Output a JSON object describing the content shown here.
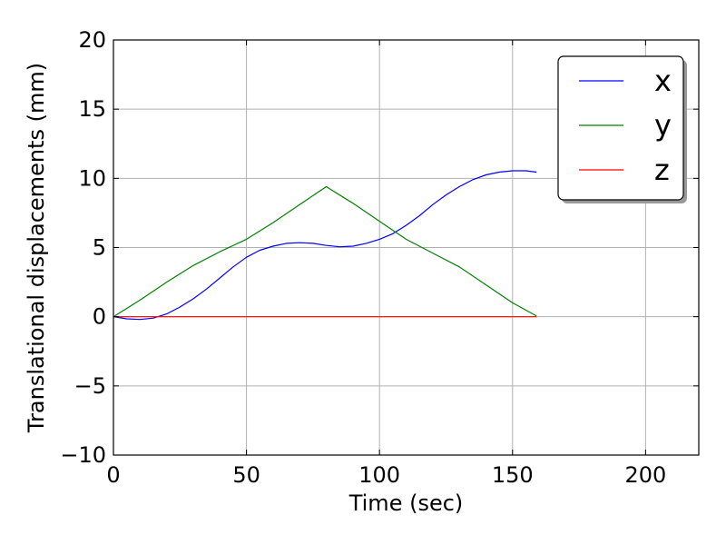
{
  "chart_data": {
    "type": "line",
    "title": "",
    "xlabel": "Time (sec)",
    "ylabel": "Translational displacements (mm)",
    "xlim": [
      0,
      220
    ],
    "ylim": [
      -10,
      20
    ],
    "xticks": [
      0,
      50,
      100,
      150,
      200
    ],
    "yticks": [
      -10,
      -5,
      0,
      5,
      10,
      15,
      20
    ],
    "xtick_labels": [
      "0",
      "50",
      "100",
      "150",
      "200"
    ],
    "ytick_labels": [
      "−10",
      "−5",
      "0",
      "5",
      "10",
      "15",
      "20"
    ],
    "grid": true,
    "legend": {
      "placement": "top-right"
    },
    "series": [
      {
        "name": "x",
        "color": "#0000ff",
        "x": [
          0,
          5,
          10,
          15,
          20,
          25,
          30,
          35,
          40,
          45,
          50,
          55,
          60,
          65,
          70,
          75,
          80,
          85,
          90,
          95,
          100,
          105,
          110,
          115,
          120,
          125,
          130,
          135,
          140,
          145,
          150,
          155,
          159
        ],
        "y": [
          0,
          -0.15,
          -0.2,
          -0.1,
          0.2,
          0.7,
          1.3,
          2.0,
          2.8,
          3.6,
          4.3,
          4.8,
          5.1,
          5.3,
          5.35,
          5.3,
          5.15,
          5.05,
          5.1,
          5.3,
          5.6,
          6.0,
          6.6,
          7.3,
          8.1,
          8.8,
          9.4,
          9.9,
          10.25,
          10.45,
          10.55,
          10.55,
          10.45
        ]
      },
      {
        "name": "y",
        "color": "#008000",
        "x": [
          0,
          10,
          20,
          30,
          40,
          50,
          60,
          70,
          80,
          90,
          100,
          110,
          120,
          130,
          140,
          150,
          159
        ],
        "y": [
          0,
          1.2,
          2.5,
          3.7,
          4.7,
          5.6,
          6.8,
          8.1,
          9.4,
          8.2,
          6.9,
          5.6,
          4.6,
          3.6,
          2.3,
          1.0,
          0.05
        ]
      },
      {
        "name": "z",
        "color": "#ff0000",
        "x": [
          0,
          159
        ],
        "y": [
          0,
          0
        ]
      }
    ]
  }
}
